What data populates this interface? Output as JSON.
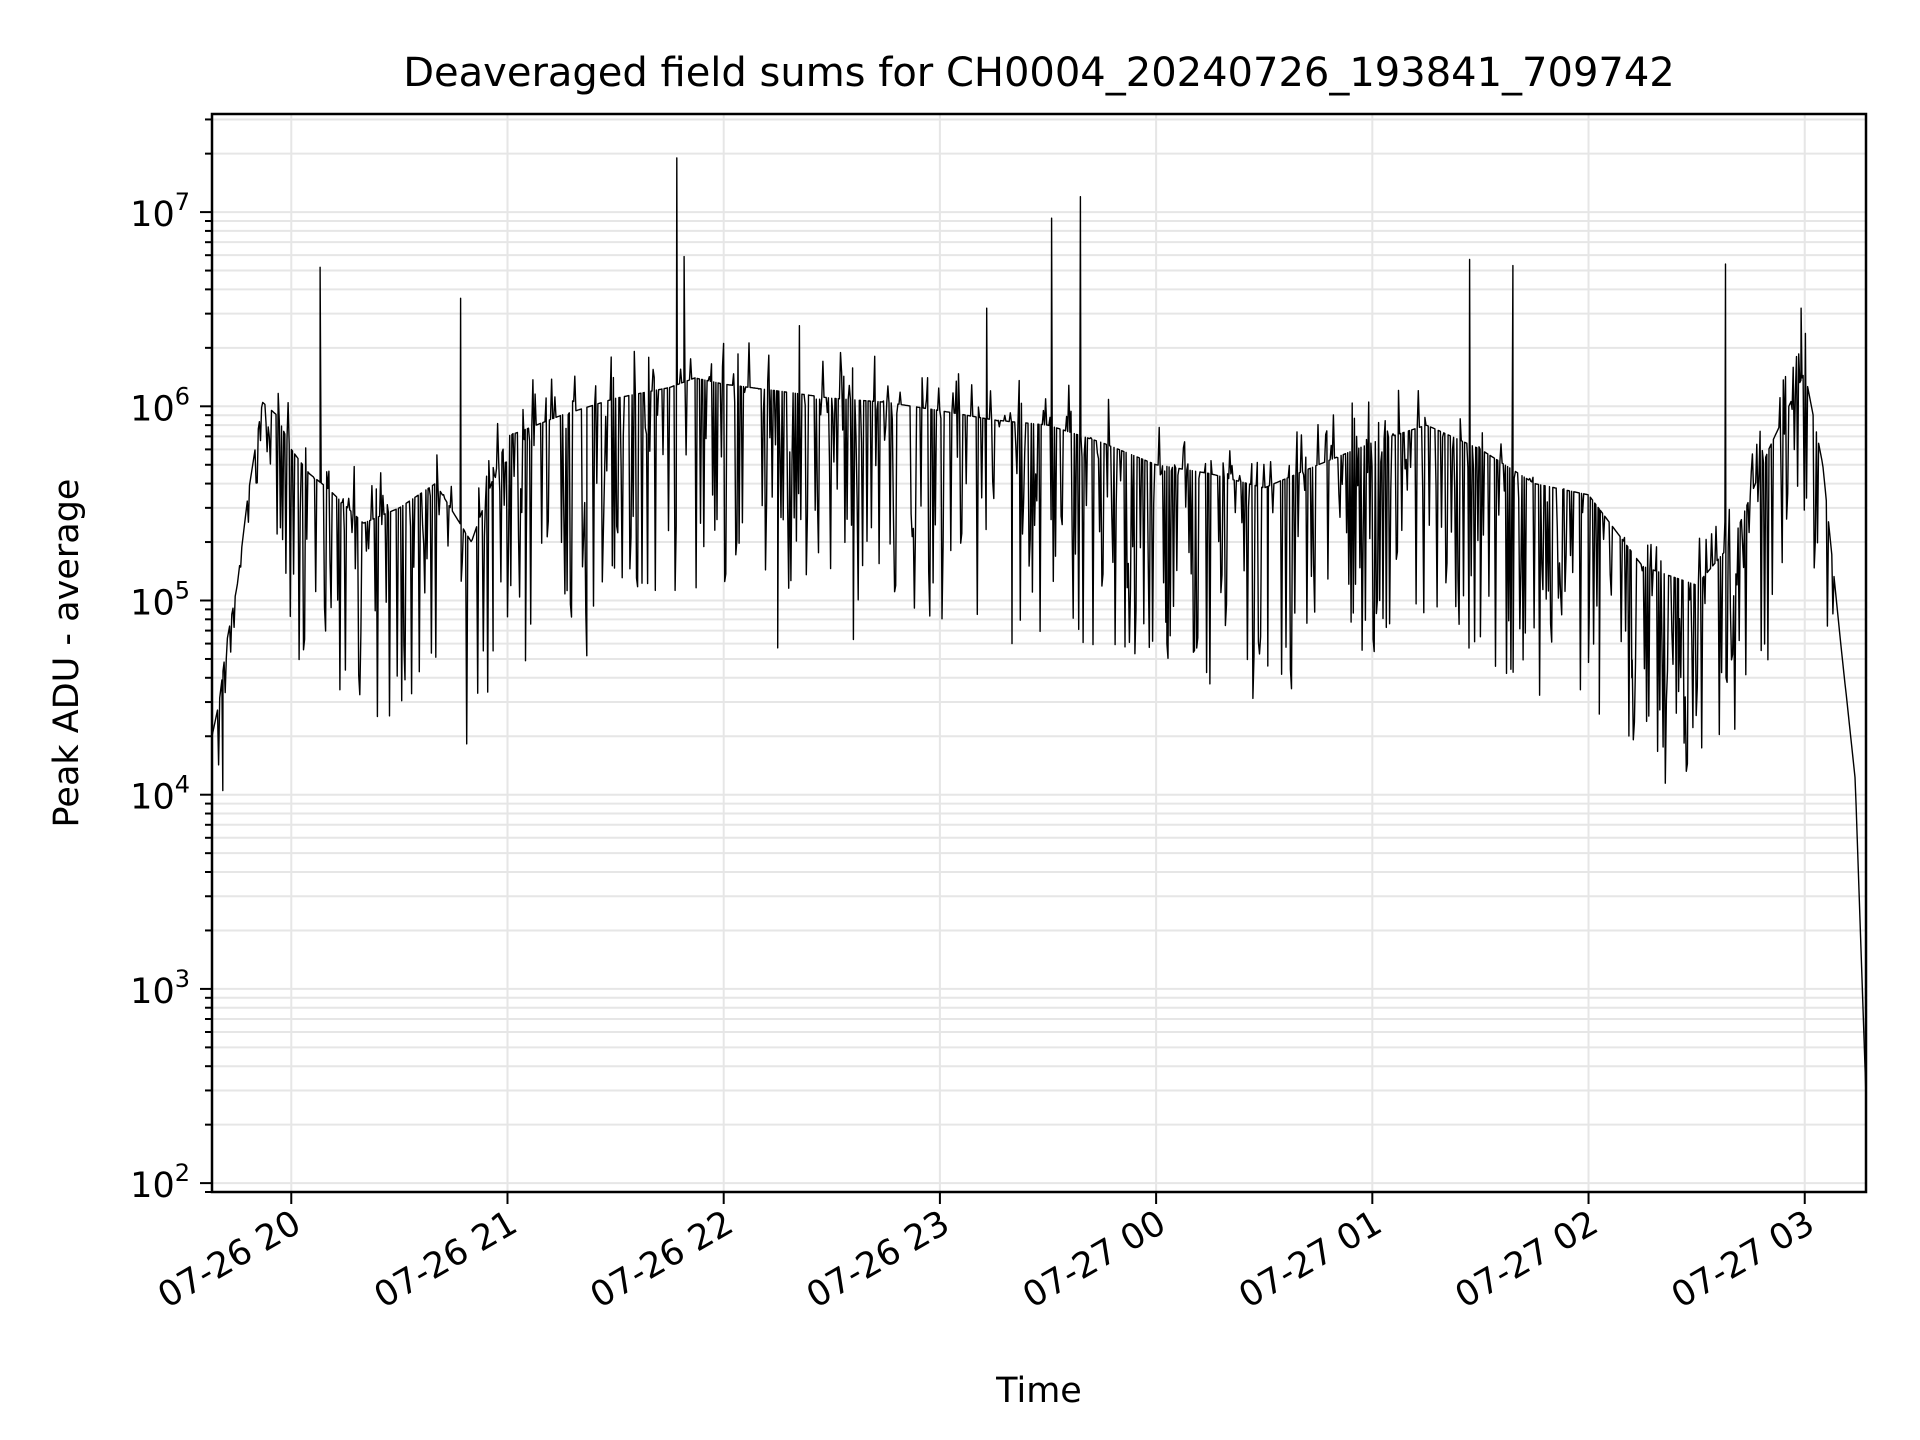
{
  "chart_data": {
    "type": "line",
    "title": "Deaveraged field sums for CH0004_20240726_193841_709742",
    "xlabel": "Time",
    "ylabel": "Peak ADU - average",
    "yscale": "log",
    "ylim": [
      90,
      32000000
    ],
    "xlim": [
      "2024-07-26 19:38",
      "2024-07-27 03:17"
    ],
    "grid": true,
    "grid_minor": true,
    "line_color": "#000000",
    "x_tick_labels": [
      "07-26 20",
      "07-26 21",
      "07-26 22",
      "07-26 23",
      "07-27 00",
      "07-27 01",
      "07-27 02",
      "07-27 03"
    ],
    "x_ticks": [
      "2024-07-26 20:00",
      "2024-07-26 21:00",
      "2024-07-26 22:00",
      "2024-07-26 23:00",
      "2024-07-27 00:00",
      "2024-07-27 01:00",
      "2024-07-27 02:00",
      "2024-07-27 03:00"
    ],
    "y_ticks": [
      {
        "base": "10",
        "exp": "2",
        "value": 100
      },
      {
        "base": "10",
        "exp": "3",
        "value": 1000
      },
      {
        "base": "10",
        "exp": "4",
        "value": 10000
      },
      {
        "base": "10",
        "exp": "5",
        "value": 100000
      },
      {
        "base": "10",
        "exp": "6",
        "value": 1000000
      },
      {
        "base": "10",
        "exp": "7",
        "value": 10000000
      }
    ],
    "series": [
      {
        "x": [
          "2024-07-26 19:38",
          "2024-07-26 19:40",
          "2024-07-26 19:42",
          "2024-07-26 19:45",
          "2024-07-26 19:48",
          "2024-07-26 19:52",
          "2024-07-26 19:56",
          "2024-07-26 20:00",
          "2024-07-26 20:05",
          "2024-07-26 20:10",
          "2024-07-26 20:20",
          "2024-07-26 20:30",
          "2024-07-26 20:40",
          "2024-07-26 20:50",
          "2024-07-26 21:00",
          "2024-07-26 21:15",
          "2024-07-26 21:30",
          "2024-07-26 21:45",
          "2024-07-26 21:52",
          "2024-07-26 22:00",
          "2024-07-26 22:15",
          "2024-07-26 22:30",
          "2024-07-26 22:45",
          "2024-07-26 23:00",
          "2024-07-26 23:15",
          "2024-07-26 23:30",
          "2024-07-26 23:45",
          "2024-07-27 00:00",
          "2024-07-27 00:15",
          "2024-07-27 00:30",
          "2024-07-27 00:45",
          "2024-07-27 01:00",
          "2024-07-27 01:15",
          "2024-07-27 01:30",
          "2024-07-27 01:45",
          "2024-07-27 02:00",
          "2024-07-27 02:15",
          "2024-07-27 02:30",
          "2024-07-27 02:40",
          "2024-07-27 02:50",
          "2024-07-27 03:00",
          "2024-07-27 03:05",
          "2024-07-27 03:10",
          "2024-07-27 03:14",
          "2024-07-27 03:17"
        ],
        "values": [
          20000,
          30000,
          60000,
          120000,
          350000,
          1050000,
          900000,
          600000,
          450000,
          380000,
          250000,
          300000,
          400000,
          200000,
          700000,
          900000,
          1100000,
          1250000,
          1400000,
          1300000,
          1200000,
          1100000,
          1050000,
          950000,
          850000,
          800000,
          650000,
          500000,
          450000,
          380000,
          500000,
          650000,
          800000,
          600000,
          400000,
          350000,
          150000,
          120000,
          200000,
          600000,
          1500000,
          500000,
          60000,
          12000,
          280
        ]
      }
    ],
    "spikes": [
      {
        "x": "2024-07-26 20:08",
        "value": 5200000
      },
      {
        "x": "2024-07-26 20:47",
        "value": 3600000
      },
      {
        "x": "2024-07-26 21:47",
        "value": 19000000
      },
      {
        "x": "2024-07-26 21:49",
        "value": 5900000
      },
      {
        "x": "2024-07-26 22:21",
        "value": 2600000
      },
      {
        "x": "2024-07-26 23:13",
        "value": 3200000
      },
      {
        "x": "2024-07-26 23:31",
        "value": 9300000
      },
      {
        "x": "2024-07-26 23:39",
        "value": 12000000
      },
      {
        "x": "2024-07-27 01:27",
        "value": 5700000
      },
      {
        "x": "2024-07-27 01:39",
        "value": 5300000
      },
      {
        "x": "2024-07-27 02:38",
        "value": 5400000
      },
      {
        "x": "2024-07-27 02:59",
        "value": 3200000
      }
    ],
    "dips": [
      {
        "x": "2024-07-26 19:41",
        "value": 10500
      },
      {
        "x": "2024-07-26 20:56",
        "value": 55000
      },
      {
        "x": "2024-07-26 21:05",
        "value": 49000
      },
      {
        "x": "2024-07-26 21:22",
        "value": 52000
      },
      {
        "x": "2024-07-26 22:15",
        "value": 57000
      },
      {
        "x": "2024-07-26 22:36",
        "value": 63000
      },
      {
        "x": "2024-07-26 23:20",
        "value": 60000
      },
      {
        "x": "2024-07-27 00:03",
        "value": 60000
      },
      {
        "x": "2024-07-27 00:31",
        "value": 46000
      },
      {
        "x": "2024-07-27 01:30",
        "value": 65000
      },
      {
        "x": "2024-07-27 02:00",
        "value": 48000
      },
      {
        "x": "2024-07-27 02:03",
        "value": 26000
      },
      {
        "x": "2024-07-27 02:12",
        "value": 40000
      },
      {
        "x": "2024-07-27 02:25",
        "value": 34000
      }
    ]
  }
}
